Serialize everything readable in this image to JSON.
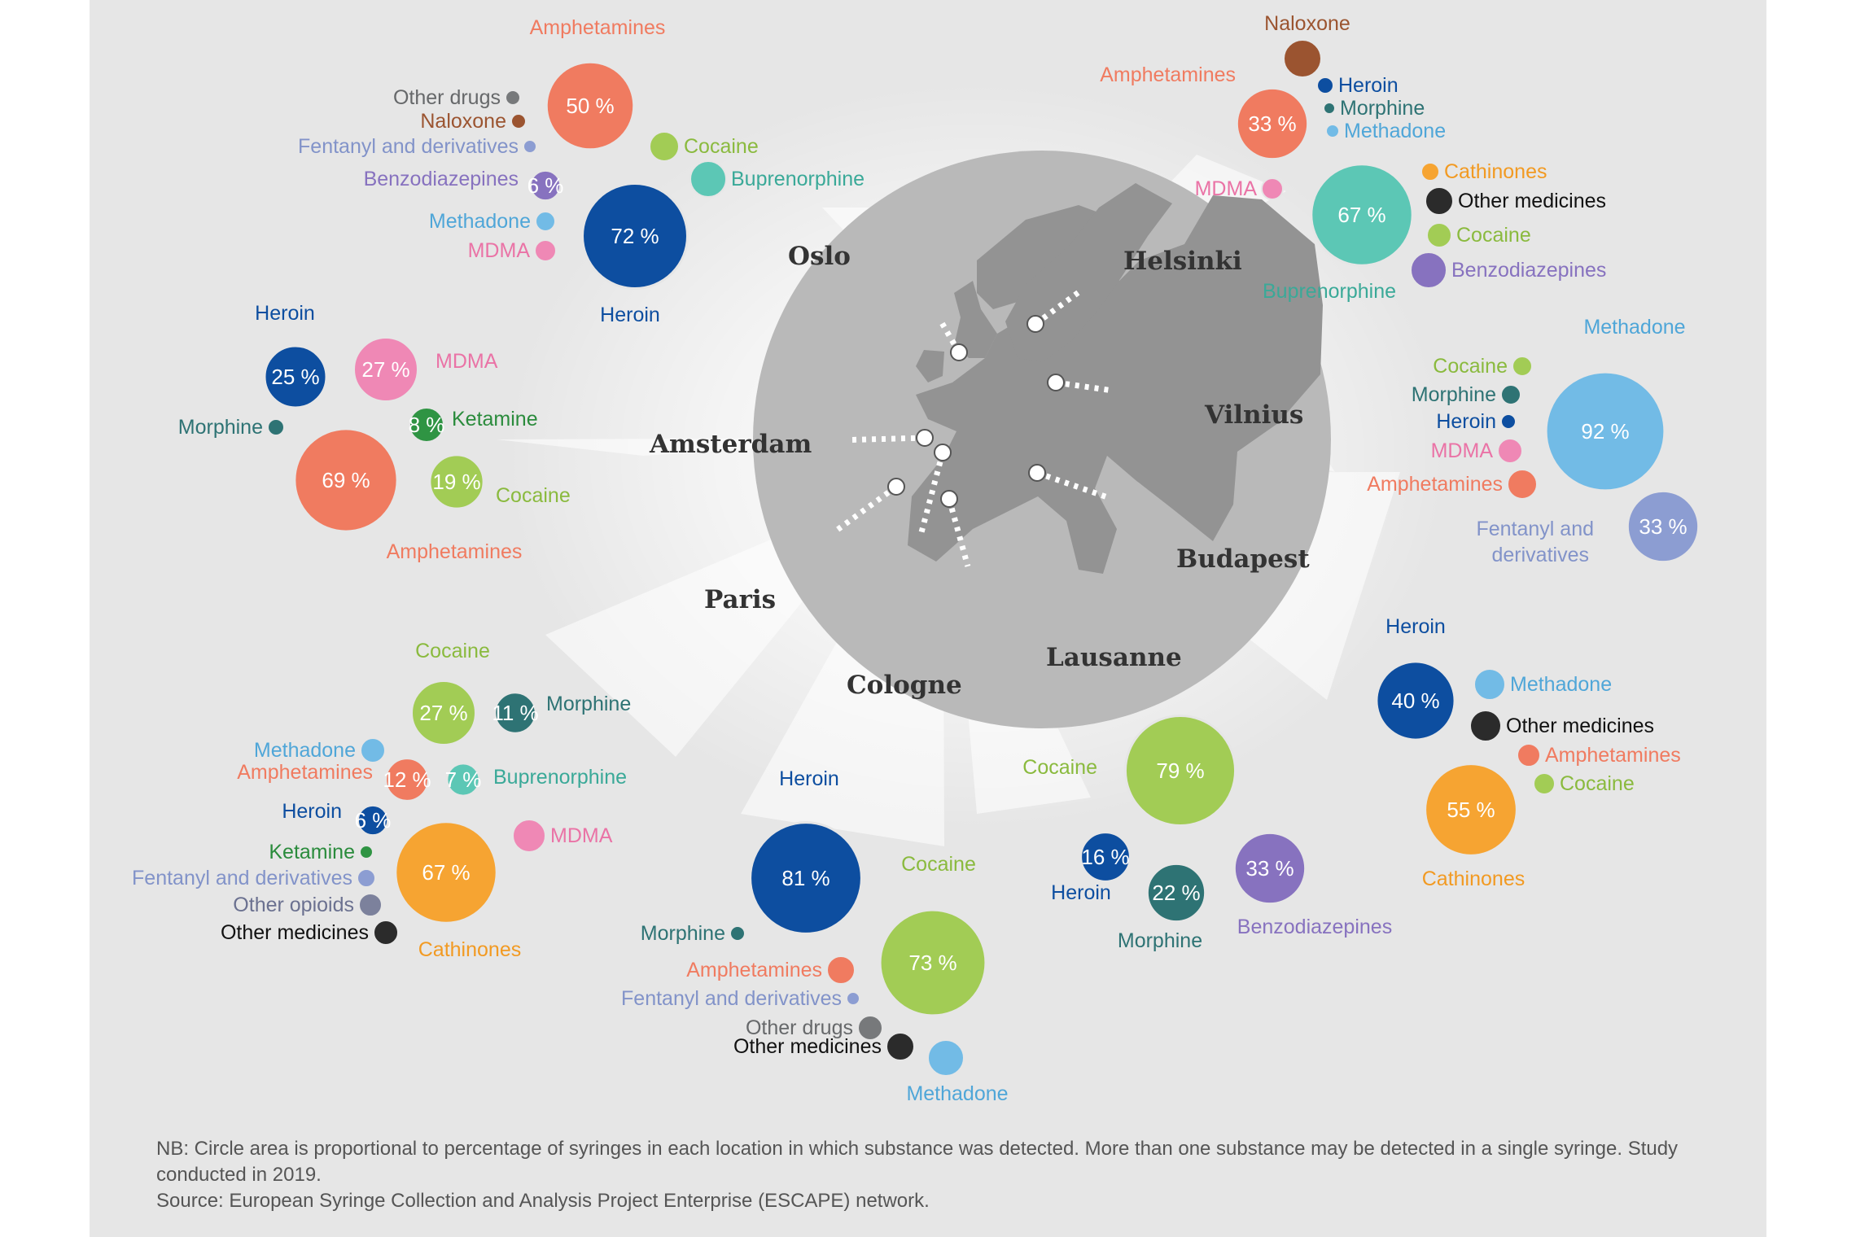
{
  "colors": {
    "Amphetamines": "#f07b60",
    "Heroin": "#0d4ea0",
    "Cocaine": "#a2cc55",
    "Buprenorphine": "#5cc7b5",
    "Benzodiazepines": "#8772bf",
    "Methadone": "#72bbe6",
    "MDMA": "#ef88b5",
    "Fentanyl and derivatives": "#8c9dd2",
    "Naloxone": "#9b5430",
    "Other drugs": "#77797b",
    "Morphine": "#2e7374",
    "Ketamine": "#2f9443",
    "Cathinones": "#f6a432",
    "Other medicines": "#2b2b2b",
    "Other opioids": "#7c819c"
  },
  "label_colors": {
    "Amphetamines": "#f07b60",
    "Heroin": "#0d4ea0",
    "Cocaine": "#8aba3e",
    "Buprenorphine": "#3aa998",
    "Benzodiazepines": "#8772bf",
    "Methadone": "#4fa6d8",
    "MDMA": "#ea73a6",
    "Fentanyl and derivatives": "#8293c9",
    "Naloxone": "#9b5430",
    "Other drugs": "#66686a",
    "Morphine": "#2e7374",
    "Ketamine": "#2a8b3c",
    "Cathinones": "#f29a22",
    "Other medicines": "#111111",
    "Other opioids": "#6b7190"
  },
  "cities": [
    "Oslo",
    "Helsinki",
    "Vilnius",
    "Amsterdam",
    "Budapest",
    "Paris",
    "Lausanne",
    "Cologne"
  ],
  "chart_data": {
    "type": "bubble-map",
    "note": "NB: Circle area is proportional to percentage of syringes in each location in which substance was detected. More than one substance may be detected in a single syringe. Study conducted in 2019.",
    "source": "Source: European Syringe Collection and Analysis Project Enterprise (ESCAPE) network.",
    "locations": [
      {
        "city": "Oslo",
        "substances": [
          {
            "name": "Heroin",
            "value": 72,
            "label": "72 %"
          },
          {
            "name": "Amphetamines",
            "value": 50,
            "label": "50 %"
          },
          {
            "name": "Benzodiazepines",
            "value": 6,
            "label": "6 %"
          },
          {
            "name": "Buprenorphine"
          },
          {
            "name": "Cocaine"
          },
          {
            "name": "Methadone"
          },
          {
            "name": "MDMA"
          },
          {
            "name": "Fentanyl and derivatives"
          },
          {
            "name": "Naloxone"
          },
          {
            "name": "Other drugs"
          }
        ]
      },
      {
        "city": "Helsinki",
        "substances": [
          {
            "name": "Buprenorphine",
            "value": 67,
            "label": "67 %"
          },
          {
            "name": "Amphetamines",
            "value": 33,
            "label": "33 %"
          },
          {
            "name": "Naloxone"
          },
          {
            "name": "Heroin"
          },
          {
            "name": "Morphine"
          },
          {
            "name": "Methadone"
          },
          {
            "name": "Cathinones"
          },
          {
            "name": "Other medicines"
          },
          {
            "name": "Cocaine"
          },
          {
            "name": "Benzodiazepines"
          },
          {
            "name": "MDMA"
          }
        ]
      },
      {
        "city": "Amsterdam",
        "substances": [
          {
            "name": "Amphetamines",
            "value": 69,
            "label": "69 %"
          },
          {
            "name": "MDMA",
            "value": 27,
            "label": "27 %"
          },
          {
            "name": "Heroin",
            "value": 25,
            "label": "25 %"
          },
          {
            "name": "Cocaine",
            "value": 19,
            "label": "19 %"
          },
          {
            "name": "Ketamine",
            "value": 8,
            "label": "8 %"
          },
          {
            "name": "Morphine"
          }
        ]
      },
      {
        "city": "Vilnius",
        "substances": [
          {
            "name": "Methadone",
            "value": 92,
            "label": "92 %"
          },
          {
            "name": "Fentanyl and derivatives",
            "value": 33,
            "label": "33 %"
          },
          {
            "name": "Cocaine"
          },
          {
            "name": "Morphine"
          },
          {
            "name": "Heroin"
          },
          {
            "name": "MDMA"
          },
          {
            "name": "Amphetamines"
          }
        ]
      },
      {
        "city": "Paris",
        "substances": [
          {
            "name": "Cathinones",
            "value": 67,
            "label": "67 %"
          },
          {
            "name": "Cocaine",
            "value": 27,
            "label": "27 %"
          },
          {
            "name": "Amphetamines",
            "value": 12,
            "label": "12 %"
          },
          {
            "name": "Morphine",
            "value": 11,
            "label": "11 %"
          },
          {
            "name": "Buprenorphine",
            "value": 7,
            "label": "7 %"
          },
          {
            "name": "Heroin",
            "value": 6,
            "label": "6 %"
          },
          {
            "name": "Methadone"
          },
          {
            "name": "MDMA"
          },
          {
            "name": "Ketamine"
          },
          {
            "name": "Fentanyl and derivatives"
          },
          {
            "name": "Other opioids"
          },
          {
            "name": "Other medicines"
          }
        ]
      },
      {
        "city": "Cologne",
        "substances": [
          {
            "name": "Heroin",
            "value": 81,
            "label": "81 %"
          },
          {
            "name": "Cocaine",
            "value": 73,
            "label": "73 %"
          },
          {
            "name": "Morphine"
          },
          {
            "name": "Amphetamines"
          },
          {
            "name": "Fentanyl and derivatives"
          },
          {
            "name": "Other drugs"
          },
          {
            "name": "Other medicines"
          },
          {
            "name": "Methadone"
          }
        ]
      },
      {
        "city": "Lausanne",
        "substances": [
          {
            "name": "Cocaine",
            "value": 79,
            "label": "79 %"
          },
          {
            "name": "Benzodiazepines",
            "value": 33,
            "label": "33 %"
          },
          {
            "name": "Morphine",
            "value": 22,
            "label": "22 %"
          },
          {
            "name": "Heroin",
            "value": 16,
            "label": "16 %"
          }
        ]
      },
      {
        "city": "Budapest",
        "substances": [
          {
            "name": "Cathinones",
            "value": 55,
            "label": "55 %"
          },
          {
            "name": "Heroin",
            "value": 40,
            "label": "40 %"
          },
          {
            "name": "Methadone"
          },
          {
            "name": "Other medicines"
          },
          {
            "name": "Amphetamines"
          },
          {
            "name": "Cocaine"
          }
        ]
      }
    ]
  }
}
